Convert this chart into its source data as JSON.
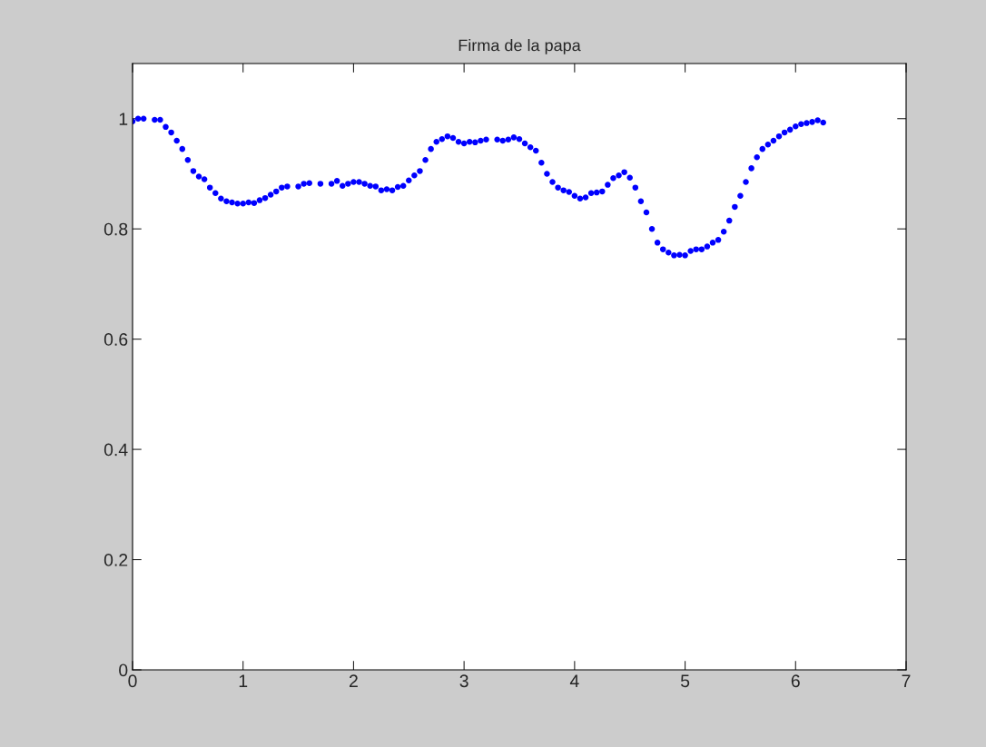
{
  "chart_data": {
    "type": "scatter",
    "title": "Firma de la papa",
    "x": [
      0,
      0.05,
      0.1,
      0.2,
      0.25,
      0.3,
      0.35,
      0.4,
      0.45,
      0.5,
      0.55,
      0.6,
      0.65,
      0.7,
      0.75,
      0.8,
      0.85,
      0.9,
      0.95,
      1.0,
      1.05,
      1.1,
      1.15,
      1.2,
      1.25,
      1.3,
      1.35,
      1.4,
      1.5,
      1.55,
      1.6,
      1.7,
      1.8,
      1.85,
      1.9,
      1.95,
      2.0,
      2.05,
      2.1,
      2.15,
      2.2,
      2.25,
      2.3,
      2.35,
      2.4,
      2.45,
      2.5,
      2.55,
      2.6,
      2.65,
      2.7,
      2.75,
      2.8,
      2.85,
      2.9,
      2.95,
      3.0,
      3.05,
      3.1,
      3.15,
      3.2,
      3.3,
      3.35,
      3.4,
      3.45,
      3.5,
      3.55,
      3.6,
      3.65,
      3.7,
      3.75,
      3.8,
      3.85,
      3.9,
      3.95,
      4.0,
      4.05,
      4.1,
      4.15,
      4.2,
      4.25,
      4.3,
      4.35,
      4.4,
      4.45,
      4.5,
      4.55,
      4.6,
      4.65,
      4.7,
      4.75,
      4.8,
      4.85,
      4.9,
      4.95,
      5.0,
      5.05,
      5.1,
      5.15,
      5.2,
      5.25,
      5.3,
      5.35,
      5.4,
      5.45,
      5.5,
      5.55,
      5.6,
      5.65,
      5.7,
      5.75,
      5.8,
      5.85,
      5.9,
      5.95,
      6.0,
      6.05,
      6.1,
      6.15,
      6.2,
      6.25
    ],
    "series": [
      {
        "color": "#0000ff",
        "marker": "circle",
        "values": [
          0.995,
          1.0,
          1.0,
          0.998,
          0.998,
          0.985,
          0.975,
          0.96,
          0.945,
          0.925,
          0.905,
          0.895,
          0.89,
          0.875,
          0.865,
          0.855,
          0.85,
          0.848,
          0.846,
          0.846,
          0.848,
          0.847,
          0.852,
          0.856,
          0.862,
          0.868,
          0.875,
          0.877,
          0.877,
          0.882,
          0.883,
          0.882,
          0.882,
          0.887,
          0.878,
          0.882,
          0.885,
          0.885,
          0.882,
          0.878,
          0.877,
          0.87,
          0.872,
          0.87,
          0.876,
          0.878,
          0.888,
          0.897,
          0.905,
          0.925,
          0.945,
          0.958,
          0.963,
          0.968,
          0.965,
          0.958,
          0.955,
          0.958,
          0.957,
          0.96,
          0.962,
          0.962,
          0.96,
          0.962,
          0.966,
          0.963,
          0.955,
          0.948,
          0.942,
          0.92,
          0.9,
          0.885,
          0.875,
          0.87,
          0.867,
          0.86,
          0.855,
          0.857,
          0.865,
          0.866,
          0.868,
          0.88,
          0.892,
          0.897,
          0.903,
          0.893,
          0.875,
          0.85,
          0.83,
          0.8,
          0.775,
          0.763,
          0.757,
          0.752,
          0.753,
          0.752,
          0.76,
          0.763,
          0.763,
          0.768,
          0.775,
          0.78,
          0.795,
          0.815,
          0.84,
          0.86,
          0.885,
          0.91,
          0.93,
          0.945,
          0.953,
          0.96,
          0.968,
          0.975,
          0.98,
          0.986,
          0.99,
          0.992,
          0.994,
          0.997,
          0.993
        ]
      }
    ],
    "xlim": [
      0,
      7
    ],
    "xticks": [
      0,
      1,
      2,
      3,
      4,
      5,
      6,
      7
    ],
    "ylim": [
      0,
      1.1
    ],
    "yticks": [
      0,
      0.2,
      0.4,
      0.6,
      0.8,
      1
    ],
    "grid": false,
    "legend": false
  }
}
